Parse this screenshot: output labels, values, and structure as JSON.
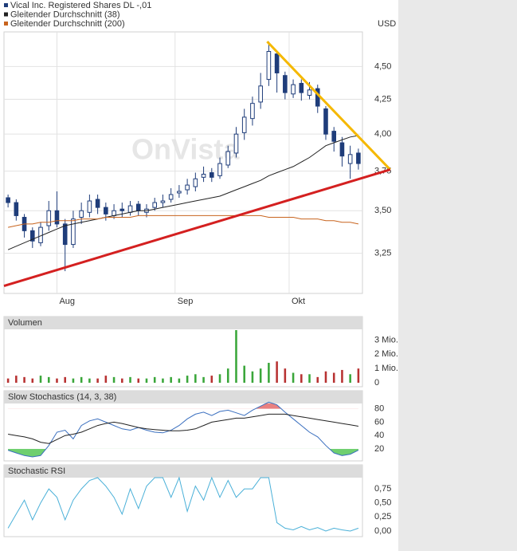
{
  "chart_data": [
    {
      "type": "candlestick",
      "unit": "USD",
      "watermark": "OnVista",
      "log": true,
      "ylim": [
        3.03,
        4.78
      ],
      "yticks": [
        {
          "value": 3.25,
          "label": "3,25"
        },
        {
          "value": 3.5,
          "label": "3,50"
        },
        {
          "value": 3.75,
          "label": "3,75"
        },
        {
          "value": 4,
          "label": "4,00"
        },
        {
          "value": 4.25,
          "label": "4,25"
        },
        {
          "value": 4.5,
          "label": "4,50"
        }
      ],
      "xlim": [
        -0.5,
        43.5
      ],
      "xticks": [
        {
          "value": 6,
          "label": "Aug"
        },
        {
          "value": 20.5,
          "label": "Sep"
        },
        {
          "value": 34.5,
          "label": "Okt"
        }
      ],
      "candles": {
        "name": "Vical Inc. Registered Shares DL -,01",
        "color": "#1f3d7a",
        "open": [
          3.58,
          3.55,
          3.46,
          3.38,
          3.31,
          3.41,
          3.5,
          3.42,
          3.3,
          3.46,
          3.49,
          3.57,
          3.52,
          3.47,
          3.51,
          3.49,
          3.54,
          3.49,
          3.52,
          3.55,
          3.57,
          3.61,
          3.63,
          3.65,
          3.71,
          3.74,
          3.72,
          3.79,
          3.87,
          4.01,
          4.11,
          4.23,
          4.4,
          4.6,
          4.43,
          4.29,
          4.37,
          4.28,
          4.33,
          4.18,
          4.02,
          3.94,
          3.8,
          3.87
        ],
        "high": [
          3.6,
          3.57,
          3.48,
          3.4,
          3.43,
          3.56,
          3.62,
          3.45,
          3.5,
          3.55,
          3.6,
          3.6,
          3.55,
          3.54,
          3.55,
          3.56,
          3.56,
          3.54,
          3.58,
          3.6,
          3.64,
          3.66,
          3.7,
          3.74,
          3.78,
          3.77,
          3.84,
          3.92,
          4.05,
          4.18,
          4.27,
          4.45,
          4.7,
          4.62,
          4.46,
          4.4,
          4.4,
          4.38,
          4.36,
          4.2,
          4.05,
          3.98,
          3.92,
          3.9
        ],
        "low": [
          3.52,
          3.44,
          3.34,
          3.28,
          3.29,
          3.38,
          3.4,
          3.15,
          3.28,
          3.42,
          3.46,
          3.48,
          3.44,
          3.45,
          3.46,
          3.47,
          3.47,
          3.46,
          3.5,
          3.52,
          3.55,
          3.58,
          3.6,
          3.62,
          3.68,
          3.68,
          3.7,
          3.77,
          3.84,
          3.96,
          4.06,
          4.18,
          4.35,
          4.3,
          4.25,
          4.26,
          4.24,
          4.25,
          4.15,
          3.96,
          3.88,
          3.78,
          3.7,
          3.76
        ],
        "close": [
          3.55,
          3.47,
          3.38,
          3.32,
          3.4,
          3.5,
          3.42,
          3.3,
          3.45,
          3.5,
          3.56,
          3.52,
          3.48,
          3.5,
          3.5,
          3.53,
          3.5,
          3.51,
          3.55,
          3.56,
          3.6,
          3.62,
          3.66,
          3.7,
          3.73,
          3.71,
          3.8,
          3.88,
          4.0,
          4.12,
          4.22,
          4.35,
          4.62,
          4.45,
          4.3,
          4.36,
          4.3,
          4.32,
          4.2,
          4.0,
          3.95,
          3.85,
          3.86,
          3.8
        ]
      },
      "series": [
        {
          "name": "Gleitender Durchschnitt (38)",
          "color": "#222222",
          "values": [
            3.27,
            3.29,
            3.31,
            3.33,
            3.35,
            3.37,
            3.39,
            3.41,
            3.42,
            3.43,
            3.44,
            3.45,
            3.46,
            3.47,
            3.48,
            3.49,
            3.5,
            3.5,
            3.51,
            3.52,
            3.53,
            3.54,
            3.55,
            3.56,
            3.57,
            3.58,
            3.59,
            3.61,
            3.63,
            3.65,
            3.67,
            3.69,
            3.72,
            3.74,
            3.76,
            3.78,
            3.81,
            3.84,
            3.88,
            3.92,
            3.94,
            3.96,
            3.98,
            3.99
          ]
        },
        {
          "name": "Gleitender Durchschnitt (200)",
          "color": "#c8641e",
          "values": [
            3.4,
            3.41,
            3.42,
            3.42,
            3.43,
            3.43,
            3.44,
            3.44,
            3.44,
            3.45,
            3.45,
            3.45,
            3.46,
            3.46,
            3.46,
            3.46,
            3.47,
            3.47,
            3.47,
            3.47,
            3.47,
            3.47,
            3.47,
            3.47,
            3.47,
            3.47,
            3.47,
            3.47,
            3.47,
            3.47,
            3.47,
            3.47,
            3.46,
            3.46,
            3.46,
            3.46,
            3.45,
            3.45,
            3.45,
            3.44,
            3.44,
            3.43,
            3.43,
            3.42
          ]
        }
      ],
      "trendlines": [
        {
          "color": "#f5b800",
          "from": [
            31.8,
            4.7
          ],
          "to": [
            46.9,
            3.76
          ]
        },
        {
          "color": "#d42020",
          "from": [
            -0.5,
            3.07
          ],
          "to": [
            46.9,
            3.76
          ]
        }
      ]
    },
    {
      "type": "bar",
      "title": "Volumen",
      "up_color": "#3aa63a",
      "down_color": "#b83232",
      "values": [
        0.3,
        0.5,
        0.4,
        0.3,
        0.5,
        0.4,
        0.3,
        0.4,
        0.3,
        0.4,
        0.3,
        0.3,
        0.5,
        0.4,
        0.3,
        0.4,
        0.3,
        0.3,
        0.4,
        0.3,
        0.4,
        0.3,
        0.5,
        0.6,
        0.4,
        0.5,
        0.6,
        1.0,
        3.7,
        1.2,
        0.8,
        1.0,
        1.4,
        1.5,
        1.0,
        0.7,
        0.6,
        0.6,
        0.4,
        0.8,
        0.7,
        0.9,
        0.6,
        1.0
      ],
      "ylim": [
        0,
        3.7
      ],
      "yticks": [
        0,
        {
          "value": 1,
          "label": "1 Mio."
        },
        {
          "value": 2,
          "label": "2 Mio."
        },
        {
          "value": 3,
          "label": "3 Mio."
        }
      ]
    },
    {
      "type": "line",
      "title": "Slow Stochastics (14, 3, 38)",
      "ylim": [
        2,
        88
      ],
      "yticks": [
        20,
        40,
        60,
        80
      ],
      "high_fill": "#e88080",
      "low_fill": "#6fcf6f",
      "series": [
        {
          "color": "#3a6fbf",
          "values": [
            18,
            14,
            10,
            8,
            10,
            25,
            45,
            48,
            35,
            55,
            62,
            65,
            60,
            55,
            50,
            48,
            52,
            48,
            45,
            44,
            48,
            55,
            65,
            72,
            75,
            70,
            76,
            78,
            74,
            70,
            78,
            84,
            90,
            86,
            75,
            65,
            55,
            45,
            38,
            25,
            14,
            10,
            12,
            18
          ]
        },
        {
          "color": "#222222",
          "values": [
            42,
            40,
            38,
            35,
            30,
            28,
            34,
            40,
            42,
            45,
            50,
            55,
            58,
            60,
            58,
            55,
            52,
            50,
            49,
            48,
            47,
            47,
            48,
            50,
            55,
            60,
            62,
            64,
            66,
            66,
            68,
            70,
            72,
            72,
            72,
            70,
            68,
            66,
            64,
            62,
            60,
            58,
            56,
            54
          ]
        }
      ]
    },
    {
      "type": "line",
      "title": "Stochastic RSI",
      "ylim": [
        -0.1,
        0.95
      ],
      "yticks": [
        {
          "value": 0,
          "label": "0,00"
        },
        {
          "value": 0.25,
          "label": "0,25"
        },
        {
          "value": 0.5,
          "label": "0,50"
        },
        {
          "value": 0.75,
          "label": "0,75"
        }
      ],
      "series": [
        {
          "color": "#4ab0d8",
          "values": [
            0.05,
            0.3,
            0.55,
            0.2,
            0.5,
            0.75,
            0.6,
            0.2,
            0.55,
            0.75,
            0.9,
            0.95,
            0.8,
            0.6,
            0.3,
            0.75,
            0.4,
            0.8,
            0.95,
            0.95,
            0.6,
            0.95,
            0.35,
            0.8,
            0.55,
            0.95,
            0.6,
            0.9,
            0.6,
            0.75,
            0.75,
            0.95,
            0.95,
            0.15,
            0.05,
            0.02,
            0.08,
            0.02,
            0.06,
            0.0,
            0.05,
            0.02,
            0.0,
            0.05
          ]
        }
      ]
    }
  ]
}
